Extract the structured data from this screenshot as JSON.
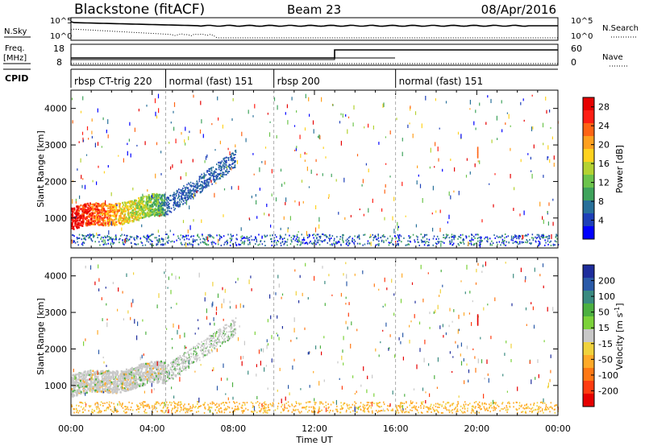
{
  "header": {
    "radar": "Blackstone (fitACF)",
    "beam": "Beam 23",
    "date": "08/Apr/2016"
  },
  "top_panel": {
    "nsky_label": "N.Sky",
    "nsearch_label": "N.Search",
    "scale_hi": "10^5",
    "scale_lo": "10^0",
    "freq_label": "Freq.",
    "freq_unit": "[MHz]",
    "freq_ticks": [
      "18",
      "8"
    ],
    "nave_label": "Nave",
    "nave_ticks": [
      "60",
      "0"
    ],
    "cpid_label": "CPID",
    "cpid_segments": [
      {
        "label": "rbsp CT-trig 220",
        "start_hour": 0
      },
      {
        "label": "normal (fast) 151",
        "start_hour": 4.67
      },
      {
        "label": "rbsp 200",
        "start_hour": 10
      },
      {
        "label": "normal (fast) 151",
        "start_hour": 16
      }
    ]
  },
  "colors": {
    "power": [
      "#0000ff",
      "#1e40b8",
      "#28709a",
      "#3fa35c",
      "#6cc44c",
      "#b4d232",
      "#ffd21e",
      "#ffa01e",
      "#ff6414",
      "#ff1e14",
      "#e60000"
    ],
    "velocity": [
      "#1e2d9c",
      "#2a5aa8",
      "#3a8a80",
      "#4cb040",
      "#7cd23a",
      "#c8c8c8",
      "#f0d23c",
      "#ffaa28",
      "#ff7814",
      "#ff3c10",
      "#e60000"
    ]
  },
  "chart_data": [
    {
      "type": "heatmap",
      "title": "",
      "xlabel": "",
      "ylabel": "Slant Range [km]",
      "xlim_hours": [
        0,
        24
      ],
      "ylim_km": [
        180,
        4500
      ],
      "yticks": [
        "1000",
        "2000",
        "3000",
        "4000"
      ],
      "colorbar": {
        "label": "Power [dB]",
        "ticks": [
          "4",
          "8",
          "12",
          "16",
          "20",
          "24",
          "28"
        ],
        "range": [
          0,
          30
        ]
      }
    },
    {
      "type": "heatmap",
      "title": "",
      "xlabel": "Time UT",
      "ylabel": "Slant Range [km]",
      "xlim_hours": [
        0,
        24
      ],
      "ylim_km": [
        180,
        4500
      ],
      "xticks": [
        "00:00",
        "04:00",
        "08:00",
        "12:00",
        "16:00",
        "20:00",
        "00:00"
      ],
      "yticks": [
        "1000",
        "2000",
        "3000",
        "4000"
      ],
      "colorbar": {
        "label": "Velocity [m s^-1]",
        "ticks": [
          "200",
          "100",
          "50",
          "15",
          "-15",
          "-50",
          "-100",
          "-200"
        ]
      }
    }
  ]
}
